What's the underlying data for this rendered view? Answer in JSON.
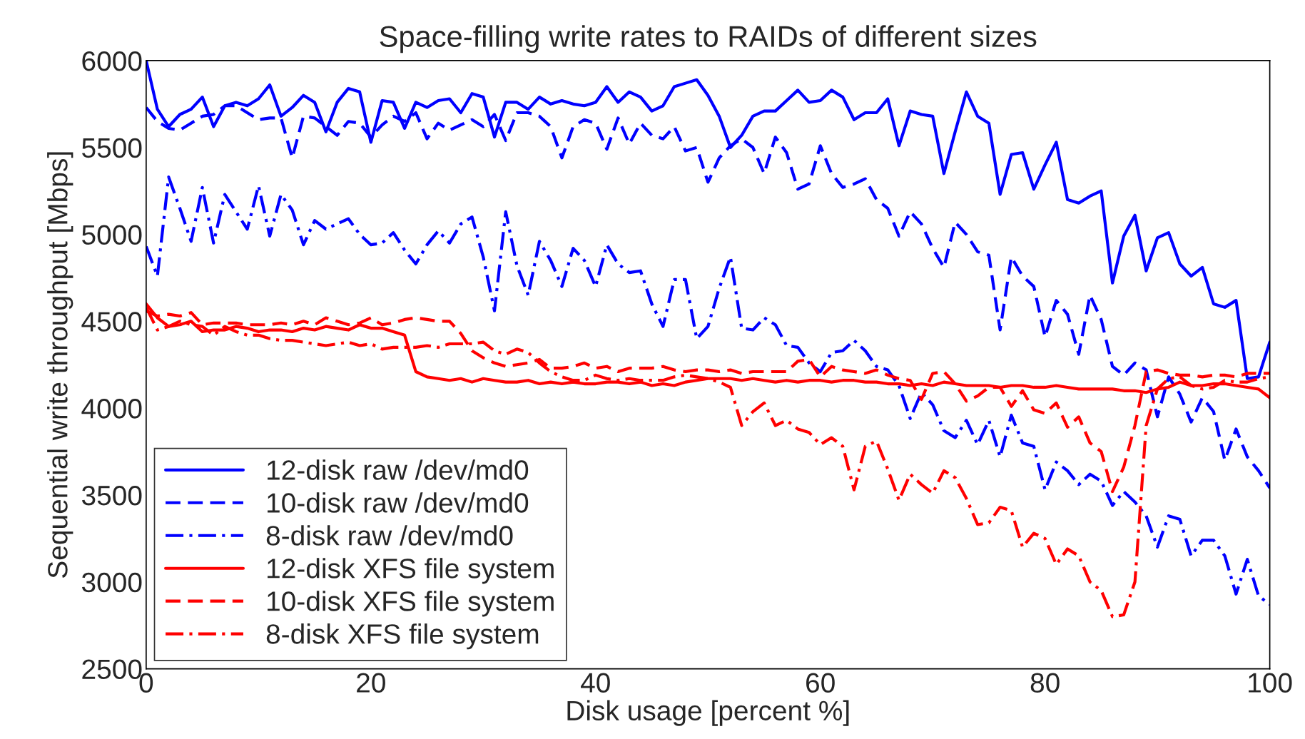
{
  "chart_data": {
    "type": "line",
    "title": "Space-filling write rates to RAIDs of different sizes",
    "xlabel": "Disk usage [percent %]",
    "ylabel": "Sequential write throughput [Mbps]",
    "x": [
      0,
      1,
      2,
      3,
      4,
      5,
      6,
      7,
      8,
      9,
      10,
      11,
      12,
      13,
      14,
      15,
      16,
      17,
      18,
      19,
      20,
      21,
      22,
      23,
      24,
      25,
      26,
      27,
      28,
      29,
      30,
      31,
      32,
      33,
      34,
      35,
      36,
      37,
      38,
      39,
      40,
      41,
      42,
      43,
      44,
      45,
      46,
      47,
      48,
      49,
      50,
      51,
      52,
      53,
      54,
      55,
      56,
      57,
      58,
      59,
      60,
      61,
      62,
      63,
      64,
      65,
      66,
      67,
      68,
      69,
      70,
      71,
      72,
      73,
      74,
      75,
      76,
      77,
      78,
      79,
      80,
      81,
      82,
      83,
      84,
      85,
      86,
      87,
      88,
      89,
      90,
      91,
      92,
      93,
      94,
      95,
      96,
      97,
      98,
      99,
      100
    ],
    "xlim": [
      0,
      100
    ],
    "xticks": [
      0,
      20,
      40,
      60,
      80,
      100
    ],
    "ylim": [
      2500,
      6000
    ],
    "yticks": [
      2500,
      3000,
      3500,
      4000,
      4500,
      5000,
      5500,
      6000
    ],
    "grid": false,
    "legend": "bottom left",
    "marker": "none",
    "series": [
      {
        "name": "12-disk raw /dev/md0",
        "color": "#0000ff",
        "line_style": "solid",
        "values": [
          6000,
          5720,
          5620,
          5690,
          5720,
          5790,
          5620,
          5740,
          5760,
          5740,
          5780,
          5860,
          5680,
          5730,
          5800,
          5760,
          5590,
          5760,
          5840,
          5820,
          5530,
          5770,
          5760,
          5610,
          5760,
          5730,
          5770,
          5780,
          5700,
          5810,
          5790,
          5560,
          5760,
          5760,
          5720,
          5790,
          5750,
          5770,
          5750,
          5740,
          5760,
          5850,
          5760,
          5820,
          5790,
          5710,
          5740,
          5850,
          5870,
          5890,
          5800,
          5680,
          5500,
          5570,
          5680,
          5710,
          5710,
          5770,
          5830,
          5760,
          5770,
          5830,
          5790,
          5660,
          5700,
          5700,
          5780,
          5510,
          5710,
          5690,
          5680,
          5350,
          5590,
          5820,
          5680,
          5640,
          5230,
          5460,
          5470,
          5260,
          5400,
          5530,
          5200,
          5180,
          5220,
          5250,
          4720,
          4990,
          5110,
          4790,
          4980,
          5010,
          4830,
          4760,
          4810,
          4600,
          4580,
          4620,
          4170,
          4180,
          4380
        ]
      },
      {
        "name": "10-disk raw /dev/md0",
        "color": "#0000ff",
        "line_style": "dashed",
        "values": [
          5730,
          5650,
          5610,
          5600,
          5640,
          5680,
          5690,
          5740,
          5740,
          5700,
          5660,
          5670,
          5670,
          5440,
          5680,
          5670,
          5620,
          5570,
          5650,
          5640,
          5560,
          5630,
          5680,
          5650,
          5700,
          5550,
          5640,
          5600,
          5630,
          5660,
          5620,
          5690,
          5540,
          5700,
          5700,
          5680,
          5620,
          5440,
          5620,
          5660,
          5640,
          5490,
          5670,
          5520,
          5640,
          5570,
          5550,
          5620,
          5480,
          5500,
          5300,
          5440,
          5510,
          5550,
          5500,
          5350,
          5560,
          5470,
          5260,
          5290,
          5510,
          5350,
          5270,
          5290,
          5320,
          5200,
          5150,
          4990,
          5130,
          5060,
          4920,
          4810,
          5070,
          5000,
          4900,
          4880,
          4450,
          4870,
          4760,
          4700,
          4410,
          4620,
          4540,
          4310,
          4650,
          4510,
          4240,
          4190,
          4260,
          4220,
          3950,
          4180,
          4080,
          3920,
          4060,
          3980,
          3700,
          3880,
          3720,
          3640,
          3540
        ]
      },
      {
        "name": "8-disk raw /dev/md0",
        "color": "#0000ff",
        "line_style": "dashdot",
        "values": [
          4930,
          4760,
          5330,
          5150,
          4960,
          5270,
          4950,
          5230,
          5130,
          5030,
          5280,
          4990,
          5230,
          5140,
          4940,
          5080,
          5030,
          5060,
          5090,
          5000,
          4940,
          4950,
          5010,
          4910,
          4830,
          4940,
          5020,
          4950,
          5060,
          5100,
          4870,
          4560,
          5130,
          4820,
          4650,
          4960,
          4850,
          4700,
          4920,
          4850,
          4700,
          4940,
          4830,
          4780,
          4790,
          4600,
          4470,
          4740,
          4740,
          4400,
          4470,
          4690,
          4870,
          4460,
          4450,
          4520,
          4480,
          4360,
          4350,
          4260,
          4210,
          4320,
          4330,
          4390,
          4330,
          4240,
          4220,
          4130,
          3940,
          4090,
          4020,
          3870,
          3830,
          3930,
          3790,
          3930,
          3720,
          3960,
          3800,
          3780,
          3530,
          3690,
          3640,
          3560,
          3620,
          3580,
          3440,
          3520,
          3460,
          3380,
          3200,
          3380,
          3360,
          3150,
          3240,
          3240,
          3150,
          2930,
          3130,
          2920,
          2870
        ]
      },
      {
        "name": "12-disk XFS file system",
        "color": "#ff0000",
        "line_style": "solid",
        "values": [
          4600,
          4520,
          4470,
          4480,
          4500,
          4440,
          4450,
          4450,
          4470,
          4460,
          4440,
          4450,
          4450,
          4440,
          4460,
          4450,
          4470,
          4460,
          4450,
          4480,
          4460,
          4460,
          4440,
          4420,
          4210,
          4180,
          4170,
          4160,
          4170,
          4150,
          4170,
          4160,
          4150,
          4150,
          4160,
          4140,
          4150,
          4140,
          4150,
          4140,
          4140,
          4150,
          4150,
          4140,
          4150,
          4130,
          4140,
          4130,
          4150,
          4160,
          4170,
          4170,
          4170,
          4160,
          4170,
          4160,
          4150,
          4160,
          4150,
          4160,
          4160,
          4150,
          4160,
          4160,
          4150,
          4150,
          4140,
          4140,
          4130,
          4140,
          4130,
          4150,
          4140,
          4130,
          4130,
          4130,
          4120,
          4130,
          4130,
          4120,
          4120,
          4130,
          4120,
          4110,
          4110,
          4110,
          4110,
          4100,
          4100,
          4090,
          4110,
          4120,
          4150,
          4130,
          4130,
          4140,
          4140,
          4130,
          4120,
          4110,
          4060
        ]
      },
      {
        "name": "10-disk XFS file system",
        "color": "#ff0000",
        "line_style": "dashed",
        "values": [
          4560,
          4530,
          4540,
          4530,
          4550,
          4480,
          4490,
          4490,
          4490,
          4480,
          4480,
          4480,
          4490,
          4480,
          4500,
          4480,
          4520,
          4500,
          4480,
          4490,
          4520,
          4480,
          4490,
          4510,
          4520,
          4510,
          4500,
          4500,
          4430,
          4330,
          4290,
          4260,
          4240,
          4250,
          4260,
          4280,
          4230,
          4230,
          4240,
          4260,
          4230,
          4240,
          4210,
          4230,
          4230,
          4230,
          4240,
          4220,
          4210,
          4220,
          4220,
          4210,
          4220,
          4200,
          4210,
          4210,
          4210,
          4210,
          4270,
          4280,
          4180,
          4240,
          4220,
          4210,
          4200,
          4220,
          4190,
          4170,
          4160,
          4050,
          4200,
          4210,
          4140,
          4040,
          4070,
          4120,
          4120,
          4010,
          4100,
          3990,
          3970,
          4030,
          3890,
          3950,
          3800,
          3750,
          3520,
          3660,
          3900,
          4210,
          4220,
          4200,
          4190,
          4190,
          4180,
          4190,
          4190,
          4180,
          4200,
          4200,
          4200
        ]
      },
      {
        "name": "8-disk XFS file system",
        "color": "#ff0000",
        "line_style": "dashdot",
        "values": [
          4580,
          4450,
          4470,
          4500,
          4480,
          4470,
          4420,
          4470,
          4440,
          4420,
          4420,
          4400,
          4390,
          4390,
          4380,
          4370,
          4360,
          4370,
          4380,
          4360,
          4370,
          4340,
          4350,
          4350,
          4350,
          4360,
          4350,
          4370,
          4370,
          4370,
          4380,
          4330,
          4310,
          4340,
          4320,
          4260,
          4210,
          4180,
          4160,
          4160,
          4190,
          4170,
          4160,
          4170,
          4160,
          4160,
          4160,
          4180,
          4190,
          4180,
          4170,
          4150,
          4120,
          3900,
          3980,
          4030,
          3900,
          3930,
          3880,
          3860,
          3790,
          3830,
          3780,
          3530,
          3780,
          3810,
          3650,
          3470,
          3620,
          3560,
          3510,
          3640,
          3600,
          3480,
          3330,
          3340,
          3430,
          3410,
          3200,
          3280,
          3250,
          3100,
          3190,
          3150,
          3000,
          2950,
          2800,
          2810,
          3000,
          3900,
          4110,
          4170,
          4180,
          4130,
          4110,
          4120,
          4160,
          4150,
          4150,
          4170,
          4180
        ]
      }
    ]
  }
}
